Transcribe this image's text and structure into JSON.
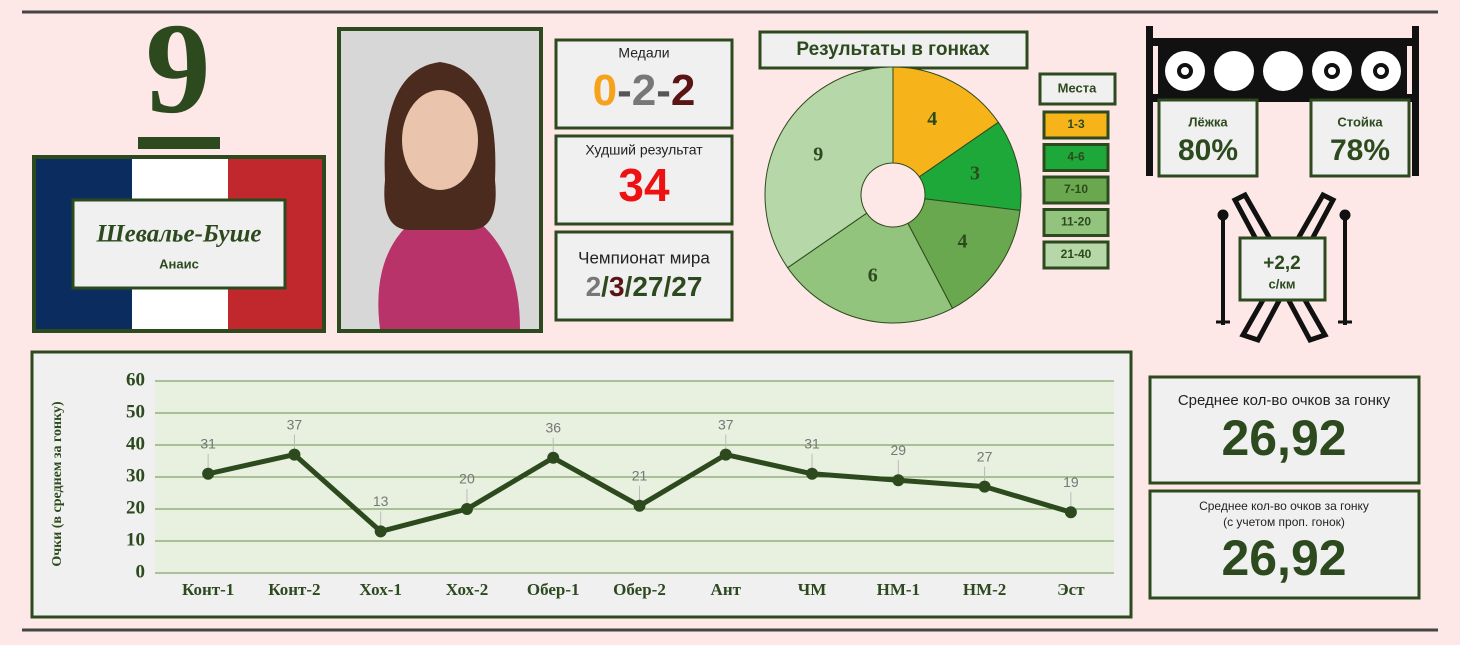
{
  "rank": "9",
  "athlete": {
    "surname": "Шевалье-Буше",
    "name": "Анаис"
  },
  "medals": {
    "title": "Медали",
    "values": [
      0,
      2,
      2
    ],
    "separator": "-"
  },
  "worst": {
    "title": "Худший результат",
    "value": 34
  },
  "world_championship": {
    "title": "Чемпионат мира",
    "values": [
      2,
      3,
      27,
      27
    ],
    "separator": "/"
  },
  "shooting": {
    "prone": {
      "label": "Лёжка",
      "value": "80%"
    },
    "standing": {
      "label": "Стойка",
      "value": "78%"
    }
  },
  "ski_speed": {
    "value": "+2,2",
    "unit": "с/км"
  },
  "averages": [
    {
      "title": "Среднее кол-во очков за гонку",
      "value": "26,92"
    },
    {
      "title": "Среднее кол-во очков за гонку",
      "subtitle": "(с учетом проп. гонок)",
      "value": "26,92"
    }
  ],
  "chart_data": [
    {
      "type": "pie",
      "title": "Результаты в гонках",
      "legend_title": "Места",
      "categories": [
        "1-3",
        "4-6",
        "7-10",
        "11-20",
        "21-40"
      ],
      "values": [
        4,
        3,
        4,
        6,
        9
      ],
      "colors": [
        "#f6b31a",
        "#1fa83a",
        "#6aa84f",
        "#93c47d",
        "#b6d7a8"
      ],
      "donut": true
    },
    {
      "type": "line",
      "y_label": "Очки (в среднем за гонку)",
      "categories": [
        "Конт-1",
        "Конт-2",
        "Хох-1",
        "Хох-2",
        "Обер-1",
        "Обер-2",
        "Ант",
        "ЧМ",
        "НМ-1",
        "НМ-2",
        "Эст"
      ],
      "values": [
        31,
        37,
        13,
        20,
        36,
        21,
        37,
        31,
        29,
        27,
        19
      ],
      "color": "#2d4a1e",
      "ylim": [
        0,
        60
      ],
      "yticks": [
        0,
        10,
        20,
        30,
        40,
        50,
        60
      ],
      "grid": true
    }
  ]
}
